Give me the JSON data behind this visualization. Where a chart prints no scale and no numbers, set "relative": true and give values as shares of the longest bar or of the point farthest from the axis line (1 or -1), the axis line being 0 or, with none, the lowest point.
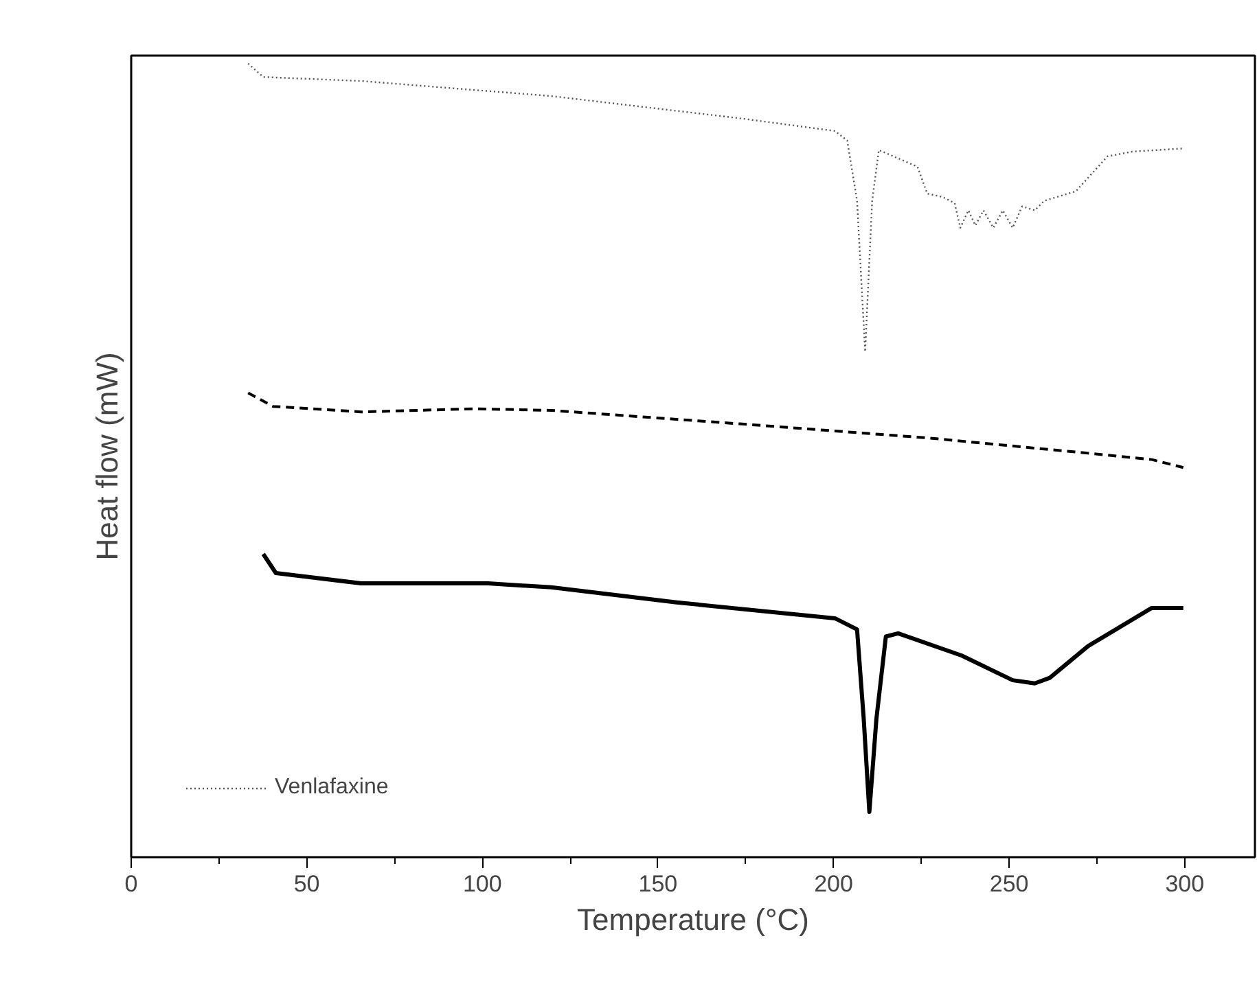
{
  "chart_data": {
    "type": "line",
    "relative": true,
    "xlabel": "Temperature (°C)",
    "ylabel": "Heat flow (mW)",
    "xlim": [
      0,
      320
    ],
    "xticks": [
      0,
      {
        "value": 25,
        "label": null
      },
      50,
      {
        "value": 75,
        "label": null
      },
      100,
      {
        "value": 125,
        "label": null
      },
      150,
      {
        "value": 175,
        "label": null
      },
      200,
      {
        "value": 225,
        "label": null
      },
      250,
      {
        "value": 275,
        "label": null
      },
      300
    ],
    "grid": false,
    "legend": "bottom left",
    "marker": "none",
    "series": [
      {
        "name": "Venlafaxine",
        "color": "#555555",
        "line_style": "dotted",
        "x": [
          33.3,
          37.6,
          65.5,
          119.6,
          173.3,
          200.4,
          203.9,
          206.7,
          209.0,
          211.0,
          212.9,
          223.9,
          226.7,
          231.0,
          234.5,
          236.1,
          238.4,
          240.4,
          242.7,
          245.5,
          248.2,
          251.0,
          253.7,
          257.3,
          260.0,
          269.0,
          278.0,
          285.1,
          299.6
        ],
        "values": [
          1.0,
          0.983,
          0.978,
          0.959,
          0.931,
          0.915,
          0.903,
          0.827,
          0.637,
          0.827,
          0.891,
          0.87,
          0.836,
          0.832,
          0.824,
          0.793,
          0.815,
          0.796,
          0.815,
          0.793,
          0.815,
          0.793,
          0.82,
          0.815,
          0.827,
          0.839,
          0.883,
          0.889,
          0.893
        ]
      },
      {
        "color": "#000000",
        "line_style": "dashed",
        "x": [
          33.3,
          40.4,
          65.5,
          97.6,
          119.6,
          173.3,
          227.5,
          272.5,
          290.6,
          299.6
        ],
        "values": [
          0.585,
          0.568,
          0.561,
          0.565,
          0.563,
          0.546,
          0.528,
          0.509,
          0.501,
          0.491
        ]
      },
      {
        "color": "#000000",
        "line_style": "solid",
        "x": [
          37.6,
          41.2,
          65.5,
          101.6,
          119.6,
          155.3,
          200.4,
          206.7,
          208.6,
          210.2,
          212.2,
          214.9,
          218.4,
          236.5,
          251.0,
          257.3,
          261.6,
          272.5,
          290.6,
          299.6
        ],
        "values": [
          0.382,
          0.358,
          0.345,
          0.345,
          0.34,
          0.321,
          0.301,
          0.287,
          0.174,
          0.057,
          0.174,
          0.278,
          0.282,
          0.254,
          0.223,
          0.219,
          0.226,
          0.266,
          0.314,
          0.314
        ]
      }
    ]
  }
}
